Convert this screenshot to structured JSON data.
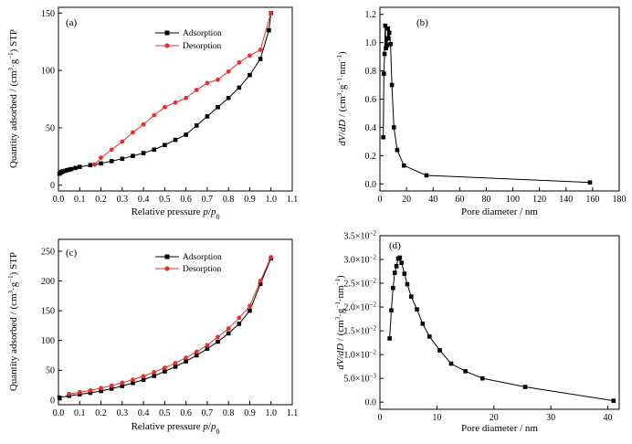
{
  "chart_data": [
    {
      "id": "a",
      "type": "line",
      "panel_label": "(a)",
      "title": "",
      "xlabel": "Relative pressure p/p0",
      "ylabel": "Quantity adsorbed / (cm3·g−1) STP",
      "xlim": [
        0.0,
        1.1
      ],
      "ylim": [
        -5,
        155
      ],
      "x_ticks": [
        0.0,
        0.1,
        0.2,
        0.3,
        0.4,
        0.5,
        0.6,
        0.7,
        0.8,
        0.9,
        1.0,
        1.1
      ],
      "y_ticks": [
        0,
        50,
        100,
        150
      ],
      "legend_position": "top-center",
      "series": [
        {
          "name": "Adsorption",
          "color": "#000000",
          "marker": "square",
          "x": [
            0.005,
            0.01,
            0.015,
            0.02,
            0.03,
            0.04,
            0.05,
            0.06,
            0.08,
            0.1,
            0.15,
            0.2,
            0.25,
            0.3,
            0.35,
            0.4,
            0.45,
            0.5,
            0.55,
            0.6,
            0.65,
            0.7,
            0.75,
            0.8,
            0.85,
            0.9,
            0.95,
            0.99,
            1.0
          ],
          "y": [
            10,
            11,
            11.5,
            12,
            12.5,
            13,
            13.5,
            14,
            15,
            16,
            17.5,
            19,
            21,
            23,
            25.5,
            28,
            31,
            35,
            39.5,
            44,
            52,
            60,
            68,
            76,
            85,
            96,
            110,
            135,
            150
          ]
        },
        {
          "name": "Desorption",
          "color": "#e8302a",
          "marker": "circle",
          "x": [
            1.0,
            0.95,
            0.9,
            0.85,
            0.8,
            0.75,
            0.7,
            0.65,
            0.6,
            0.55,
            0.5,
            0.45,
            0.4,
            0.35,
            0.3,
            0.25,
            0.2,
            0.17
          ],
          "y": [
            150,
            118,
            113,
            107,
            99,
            92,
            89,
            83,
            76,
            72,
            68,
            61,
            53,
            46,
            38,
            31,
            24,
            18
          ]
        }
      ]
    },
    {
      "id": "b",
      "type": "line",
      "panel_label": "(b)",
      "title": "",
      "xlabel": "Pore diameter / nm",
      "ylabel": "dV/dD / (cm3·g−1·nm−1)",
      "xlim": [
        0,
        180
      ],
      "ylim": [
        -0.05,
        1.25
      ],
      "x_ticks": [
        0,
        20,
        40,
        60,
        80,
        100,
        120,
        140,
        160,
        180
      ],
      "y_ticks": [
        0.0,
        0.2,
        0.4,
        0.6,
        0.8,
        1.0,
        1.2
      ],
      "series": [
        {
          "name": "",
          "color": "#000000",
          "marker": "square",
          "x": [
            2.5,
            3.0,
            3.5,
            4.0,
            4.5,
            5.0,
            5.5,
            6.0,
            6.5,
            7.0,
            8.0,
            9.0,
            10.5,
            13.0,
            18.0,
            35.0,
            158.0
          ],
          "y": [
            0.33,
            0.78,
            0.92,
            1.12,
            0.96,
            1.03,
            0.98,
            1.1,
            1.03,
            1.07,
            0.99,
            0.7,
            0.4,
            0.24,
            0.13,
            0.06,
            0.01
          ]
        }
      ]
    },
    {
      "id": "c",
      "type": "line",
      "panel_label": "(c)",
      "title": "",
      "xlabel": "Relative pressure p/p0",
      "ylabel": "Quantity adsorbed / (cm3·g−1) STP",
      "xlim": [
        0.0,
        1.1
      ],
      "ylim": [
        -8,
        270
      ],
      "x_ticks": [
        0.0,
        0.1,
        0.2,
        0.3,
        0.4,
        0.5,
        0.6,
        0.7,
        0.8,
        0.9,
        1.0,
        1.1
      ],
      "y_ticks": [
        0,
        50,
        100,
        150,
        200,
        250
      ],
      "legend_position": "top-center",
      "series": [
        {
          "name": "Adsorption",
          "color": "#000000",
          "marker": "square",
          "x": [
            0.005,
            0.05,
            0.1,
            0.15,
            0.2,
            0.25,
            0.3,
            0.35,
            0.4,
            0.45,
            0.5,
            0.55,
            0.6,
            0.65,
            0.7,
            0.75,
            0.8,
            0.85,
            0.9,
            0.95,
            1.0
          ],
          "y": [
            4,
            7,
            9.5,
            12,
            15,
            19,
            23.5,
            28.5,
            34,
            40.5,
            48,
            56,
            65,
            75,
            86,
            98,
            112,
            128,
            150,
            195,
            238
          ]
        },
        {
          "name": "Desorption",
          "color": "#e8302a",
          "marker": "circle",
          "x": [
            1.0,
            0.95,
            0.9,
            0.85,
            0.8,
            0.75,
            0.7,
            0.65,
            0.6,
            0.55,
            0.5,
            0.45,
            0.4,
            0.35,
            0.3,
            0.25,
            0.2,
            0.15,
            0.1,
            0.05
          ],
          "y": [
            240,
            200,
            158,
            138,
            120,
            106,
            92,
            81,
            71,
            62,
            54,
            47,
            40,
            34,
            29,
            24,
            20,
            16,
            13,
            10
          ]
        }
      ]
    },
    {
      "id": "d",
      "type": "line",
      "panel_label": "(d)",
      "title": "",
      "xlabel": "Pore diameter / nm",
      "ylabel": "dV/dD / (cm3·g−1·nm−1)",
      "xlim": [
        0,
        42
      ],
      "ylim": [
        -0.0015,
        0.035
      ],
      "x_ticks": [
        0,
        10,
        20,
        30,
        40
      ],
      "y_ticks": [
        0.0,
        0.005,
        0.01,
        0.015,
        0.02,
        0.025,
        0.03,
        0.035
      ],
      "y_tick_labels": [
        "0.0",
        "5.0×10−3",
        "1.0×10−2",
        "1.5×10−2",
        "2.0×10−2",
        "2.5×10−2",
        "3.0×10−2",
        "3.5×10−2"
      ],
      "series": [
        {
          "name": "",
          "color": "#000000",
          "marker": "square",
          "x": [
            1.7,
            2.0,
            2.3,
            2.6,
            2.9,
            3.2,
            3.5,
            3.8,
            4.3,
            4.8,
            5.5,
            6.5,
            7.5,
            8.7,
            10.5,
            12.5,
            15.0,
            18.0,
            25.5,
            41.0
          ],
          "y": [
            0.0134,
            0.0193,
            0.024,
            0.0272,
            0.0286,
            0.0302,
            0.0304,
            0.0293,
            0.027,
            0.0248,
            0.0222,
            0.0195,
            0.0165,
            0.0138,
            0.0109,
            0.0081,
            0.0065,
            0.005,
            0.0032,
            0.0003
          ]
        }
      ]
    }
  ]
}
